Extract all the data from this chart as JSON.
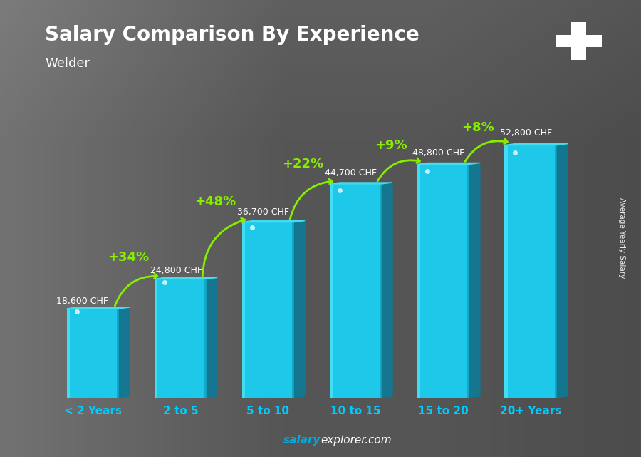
{
  "title": "Salary Comparison By Experience",
  "subtitle": "Welder",
  "categories": [
    "< 2 Years",
    "2 to 5",
    "5 to 10",
    "10 to 15",
    "15 to 20",
    "20+ Years"
  ],
  "values": [
    18600,
    24800,
    36700,
    44700,
    48800,
    52800
  ],
  "salary_labels": [
    "18,600 CHF",
    "24,800 CHF",
    "36,700 CHF",
    "44,700 CHF",
    "48,800 CHF",
    "52,800 CHF"
  ],
  "pct_labels": [
    "+34%",
    "+48%",
    "+22%",
    "+9%",
    "+8%"
  ],
  "bar_face_color": "#1ec8e8",
  "bar_highlight_color": "#55eeff",
  "bar_shadow_color": "#0a8aaa",
  "bar_right_color": "#0d7a96",
  "bar_top_color": "#44ddee",
  "title_color": "#ffffff",
  "subtitle_color": "#ffffff",
  "salary_label_color": "#ffffff",
  "pct_color": "#88ee00",
  "xlabel_color": "#00ccff",
  "footer_salary_color": "#00aadd",
  "footer_explorer_color": "#ffffff",
  "ylabel_text": "Average Yearly Salary",
  "ylim": [
    0,
    65000
  ],
  "flag_color": "#dd1111",
  "cross_color": "#ffffff",
  "bg_color": "#888888"
}
